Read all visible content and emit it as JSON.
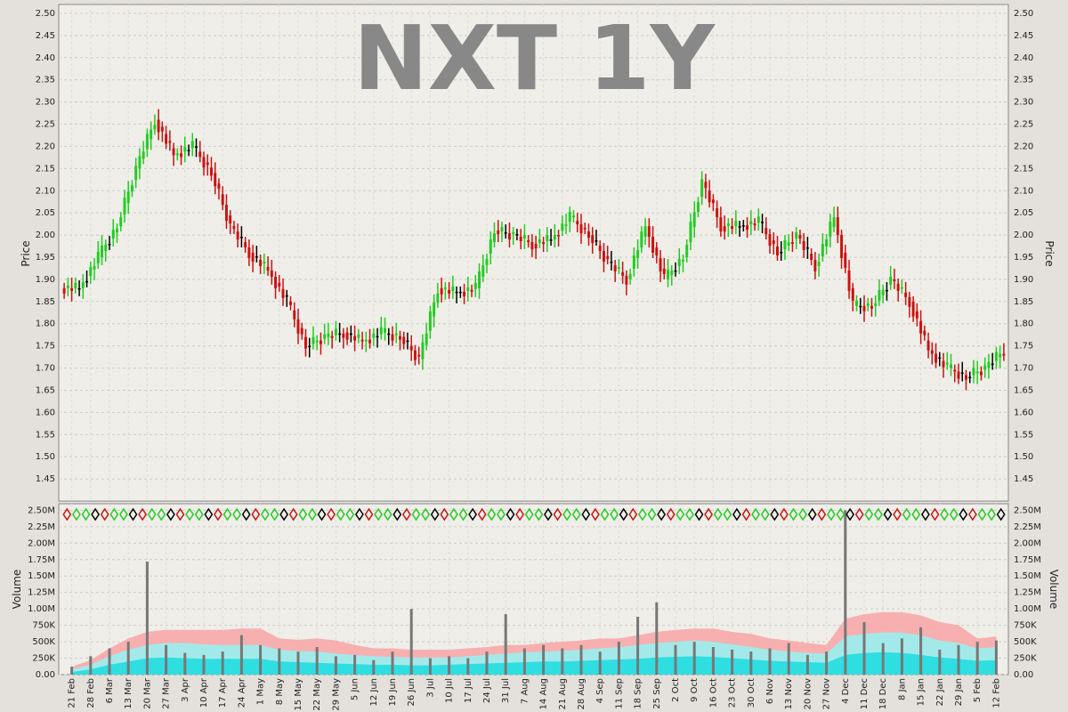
{
  "chart_data": [
    {
      "type": "candlestick",
      "title": "NXT 1Y",
      "ylabel": "Price",
      "ylim": [
        1.4,
        2.52
      ],
      "yticks": [
        "1.45",
        "1.50",
        "1.55",
        "1.60",
        "1.65",
        "1.70",
        "1.75",
        "1.80",
        "1.85",
        "1.90",
        "1.95",
        "2.00",
        "2.05",
        "2.10",
        "2.15",
        "2.20",
        "2.25",
        "2.30",
        "2.35",
        "2.40",
        "2.45",
        "2.50"
      ],
      "grid": true,
      "colors": {
        "up": "#22cc22",
        "down": "#cc1111",
        "flat": "#000000"
      },
      "x": [
        "21 Feb",
        "28 Feb",
        "6 Mar",
        "13 Mar",
        "20 Mar",
        "27 Mar",
        "3 Apr",
        "10 Apr",
        "17 Apr",
        "24 Apr",
        "1 May",
        "8 May",
        "15 May",
        "22 May",
        "29 May",
        "5 Jun",
        "12 Jun",
        "19 Jun",
        "26 Jun",
        "3 Jul",
        "10 Jul",
        "17 Jul",
        "24 Jul",
        "31 Jul",
        "7 Aug",
        "14 Aug",
        "21 Aug",
        "28 Aug",
        "4 Sep",
        "11 Sep",
        "18 Sep",
        "25 Sep",
        "2 Oct",
        "9 Oct",
        "16 Oct",
        "23 Oct",
        "30 Oct",
        "6 Nov",
        "13 Nov",
        "20 Nov",
        "27 Nov",
        "4 Dec",
        "11 Dec",
        "18 Dec",
        "8 Jan",
        "15 Jan",
        "22 Jan",
        "29 Jan",
        "5 Feb",
        "12 Feb"
      ],
      "weekly_close": [
        1.88,
        1.95,
        2.02,
        2.15,
        2.26,
        2.18,
        2.2,
        2.14,
        2.02,
        1.96,
        1.92,
        1.85,
        1.75,
        1.77,
        1.78,
        1.76,
        1.78,
        1.77,
        1.72,
        1.88,
        1.87,
        1.88,
        2.01,
        2.0,
        1.98,
        1.99,
        2.04,
        2.0,
        1.94,
        1.9,
        2.02,
        1.9,
        1.95,
        2.12,
        2.02,
        2.02,
        2.03,
        1.96,
        2.0,
        1.93,
        2.04,
        1.84,
        1.84,
        1.9,
        1.85,
        1.74,
        1.7,
        1.68,
        1.7,
        1.74
      ]
    },
    {
      "type": "bar",
      "ylabel": "Volume",
      "ylim": [
        0,
        2.6
      ],
      "yticks": [
        "0.00",
        "250K",
        "500K",
        "750K",
        "1.00M",
        "1.25M",
        "1.50M",
        "1.75M",
        "2.00M",
        "2.25M",
        "2.50M"
      ],
      "grid": true,
      "categories": [
        "21 Feb",
        "28 Feb",
        "6 Mar",
        "13 Mar",
        "20 Mar",
        "27 Mar",
        "3 Apr",
        "10 Apr",
        "17 Apr",
        "24 Apr",
        "1 May",
        "8 May",
        "15 May",
        "22 May",
        "29 May",
        "5 Jun",
        "12 Jun",
        "19 Jun",
        "26 Jun",
        "3 Jul",
        "10 Jul",
        "17 Jul",
        "24 Jul",
        "31 Jul",
        "7 Aug",
        "14 Aug",
        "21 Aug",
        "28 Aug",
        "4 Sep",
        "11 Sep",
        "18 Sep",
        "25 Sep",
        "2 Oct",
        "9 Oct",
        "16 Oct",
        "23 Oct",
        "30 Oct",
        "6 Nov",
        "13 Nov",
        "20 Nov",
        "27 Nov",
        "4 Dec",
        "11 Dec",
        "18 Dec",
        "8 Jan",
        "15 Jan",
        "22 Jan",
        "29 Jan",
        "5 Feb",
        "12 Feb"
      ],
      "values_millions": [
        0.12,
        0.28,
        0.4,
        0.5,
        1.72,
        0.45,
        0.33,
        0.3,
        0.35,
        0.6,
        0.45,
        0.4,
        0.35,
        0.42,
        0.28,
        0.3,
        0.22,
        0.35,
        1.0,
        0.25,
        0.28,
        0.25,
        0.35,
        0.92,
        0.4,
        0.45,
        0.4,
        0.45,
        0.35,
        0.5,
        0.88,
        1.1,
        0.45,
        0.5,
        0.42,
        0.38,
        0.35,
        0.4,
        0.48,
        0.3,
        0.35,
        2.5,
        0.8,
        0.48,
        0.55,
        0.72,
        0.38,
        0.45,
        0.5,
        0.52
      ],
      "band_outer_millions": [
        0.12,
        0.22,
        0.4,
        0.55,
        0.65,
        0.68,
        0.68,
        0.68,
        0.68,
        0.7,
        0.7,
        0.55,
        0.53,
        0.55,
        0.52,
        0.45,
        0.4,
        0.4,
        0.38,
        0.38,
        0.38,
        0.4,
        0.42,
        0.45,
        0.45,
        0.48,
        0.5,
        0.52,
        0.55,
        0.55,
        0.6,
        0.65,
        0.68,
        0.7,
        0.7,
        0.65,
        0.62,
        0.55,
        0.52,
        0.48,
        0.45,
        0.85,
        0.92,
        0.95,
        0.95,
        0.9,
        0.8,
        0.75,
        0.55,
        0.58
      ],
      "band_mid_millions": [
        0.08,
        0.15,
        0.28,
        0.38,
        0.45,
        0.48,
        0.48,
        0.46,
        0.45,
        0.45,
        0.45,
        0.38,
        0.36,
        0.35,
        0.32,
        0.3,
        0.28,
        0.27,
        0.26,
        0.26,
        0.26,
        0.28,
        0.3,
        0.32,
        0.34,
        0.35,
        0.36,
        0.38,
        0.4,
        0.42,
        0.45,
        0.48,
        0.5,
        0.52,
        0.5,
        0.46,
        0.42,
        0.38,
        0.35,
        0.33,
        0.32,
        0.58,
        0.62,
        0.64,
        0.64,
        0.6,
        0.52,
        0.48,
        0.4,
        0.42
      ],
      "band_inner_millions": [
        0.04,
        0.08,
        0.15,
        0.2,
        0.25,
        0.26,
        0.25,
        0.24,
        0.24,
        0.24,
        0.24,
        0.2,
        0.19,
        0.18,
        0.17,
        0.16,
        0.15,
        0.15,
        0.14,
        0.14,
        0.15,
        0.16,
        0.17,
        0.18,
        0.19,
        0.2,
        0.2,
        0.21,
        0.22,
        0.23,
        0.24,
        0.26,
        0.27,
        0.28,
        0.27,
        0.25,
        0.23,
        0.21,
        0.2,
        0.19,
        0.18,
        0.3,
        0.33,
        0.34,
        0.33,
        0.3,
        0.26,
        0.24,
        0.21,
        0.22
      ]
    }
  ]
}
